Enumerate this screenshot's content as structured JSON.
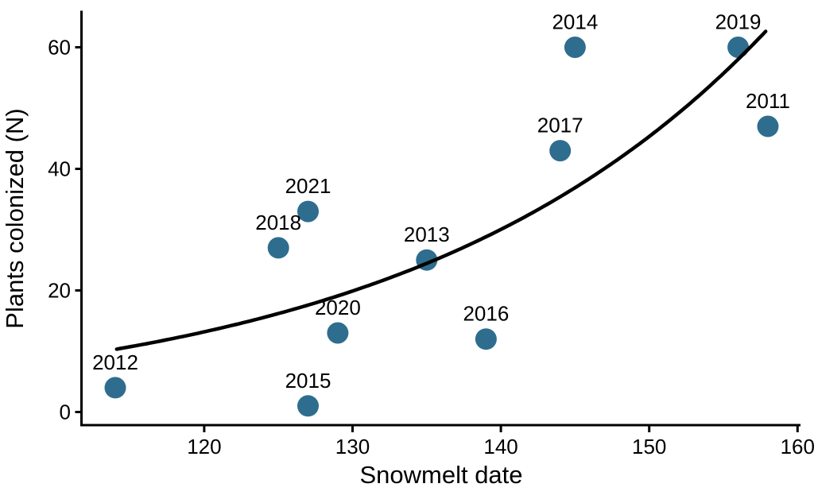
{
  "chart_data": {
    "type": "scatter",
    "title": "",
    "xlabel": "Snowmelt date",
    "ylabel": "Plants colonized (N)",
    "x_ticks": [
      120,
      130,
      140,
      150,
      160
    ],
    "y_ticks": [
      0,
      20,
      40,
      60
    ],
    "xlim": [
      111.75,
      160.2
    ],
    "ylim": [
      -2.16,
      65.82
    ],
    "grid": false,
    "legend": false,
    "points": [
      {
        "label": "2011",
        "x": 158,
        "y": 47
      },
      {
        "label": "2012",
        "x": 114,
        "y": 4
      },
      {
        "label": "2013",
        "x": 135,
        "y": 25
      },
      {
        "label": "2014",
        "x": 145,
        "y": 60
      },
      {
        "label": "2015",
        "x": 127,
        "y": 1
      },
      {
        "label": "2016",
        "x": 139,
        "y": 12
      },
      {
        "label": "2017",
        "x": 144,
        "y": 43
      },
      {
        "label": "2018",
        "x": 125,
        "y": 27
      },
      {
        "label": "2019",
        "x": 156,
        "y": 60
      },
      {
        "label": "2020",
        "x": 129,
        "y": 13
      },
      {
        "label": "2021",
        "x": 127,
        "y": 33
      }
    ],
    "trend": {
      "type": "exponential",
      "formula": "y = exp(a + b*x)",
      "a": -2.36,
      "b": 0.04116,
      "x_domain": [
        114.1,
        157.9
      ]
    },
    "colors": {
      "point": "#2e6d8e",
      "trend_line": "#000000",
      "axis": "#000000",
      "text": "#000000",
      "background": "#ffffff"
    }
  }
}
